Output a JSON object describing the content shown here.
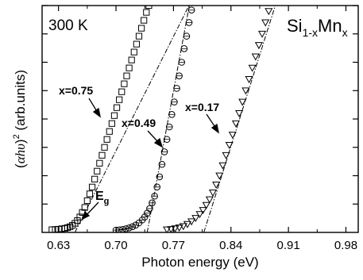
{
  "chart_data": {
    "type": "scatter",
    "title": "",
    "temperature_label": "300 K",
    "material": {
      "base": "Si",
      "sub1": "1-x",
      "mid": "Mn",
      "sub2": "x"
    },
    "xlabel": "Photon energy (eV)",
    "ylabel": {
      "prefix": "(",
      "symbol": "αhυ",
      "suffix": ")",
      "sup": "2",
      "unit": " (arb.units)"
    },
    "xlim": [
      0.61,
      0.995
    ],
    "ylim": [
      0,
      1
    ],
    "xticks": [
      "0.63",
      "0.70",
      "0.77",
      "0.84",
      "0.91",
      "0.98"
    ],
    "xtick_values": [
      0.63,
      0.7,
      0.77,
      0.84,
      0.91,
      0.98
    ],
    "y_tick_count": 8,
    "eg_label": {
      "main": "E",
      "sub": "g"
    },
    "series": [
      {
        "label": "x=0.75",
        "marker": "square",
        "eg": 0.65,
        "fit_slope": 7.2,
        "points": [
          [
            0.622,
            0.012
          ],
          [
            0.626,
            0.013
          ],
          [
            0.63,
            0.014
          ],
          [
            0.634,
            0.016
          ],
          [
            0.638,
            0.018
          ],
          [
            0.641,
            0.021
          ],
          [
            0.644,
            0.025
          ],
          [
            0.647,
            0.031
          ],
          [
            0.65,
            0.04
          ],
          [
            0.653,
            0.052
          ],
          [
            0.656,
            0.068
          ],
          [
            0.659,
            0.088
          ],
          [
            0.662,
            0.11
          ],
          [
            0.665,
            0.14
          ],
          [
            0.668,
            0.17
          ],
          [
            0.671,
            0.2
          ],
          [
            0.674,
            0.235
          ],
          [
            0.677,
            0.27
          ],
          [
            0.68,
            0.305
          ],
          [
            0.683,
            0.34
          ],
          [
            0.686,
            0.375
          ],
          [
            0.689,
            0.41
          ],
          [
            0.692,
            0.445
          ],
          [
            0.695,
            0.48
          ],
          [
            0.698,
            0.515
          ],
          [
            0.701,
            0.55
          ],
          [
            0.704,
            0.585
          ],
          [
            0.707,
            0.62
          ],
          [
            0.71,
            0.655
          ],
          [
            0.713,
            0.69
          ],
          [
            0.716,
            0.725
          ],
          [
            0.719,
            0.76
          ],
          [
            0.722,
            0.795
          ],
          [
            0.725,
            0.83
          ],
          [
            0.728,
            0.865
          ],
          [
            0.731,
            0.9
          ],
          [
            0.734,
            0.935
          ],
          [
            0.737,
            0.97
          ],
          [
            0.74,
            1.0
          ]
        ]
      },
      {
        "label": "x=0.49",
        "marker": "circle",
        "eg": 0.738,
        "fit_slope": 19.5,
        "points": [
          [
            0.7,
            0.01
          ],
          [
            0.704,
            0.011
          ],
          [
            0.708,
            0.013
          ],
          [
            0.712,
            0.016
          ],
          [
            0.716,
            0.02
          ],
          [
            0.72,
            0.025
          ],
          [
            0.724,
            0.032
          ],
          [
            0.728,
            0.042
          ],
          [
            0.732,
            0.055
          ],
          [
            0.735,
            0.068
          ],
          [
            0.738,
            0.085
          ],
          [
            0.741,
            0.105
          ],
          [
            0.744,
            0.13
          ],
          [
            0.747,
            0.16
          ],
          [
            0.75,
            0.2
          ],
          [
            0.753,
            0.245
          ],
          [
            0.756,
            0.3
          ],
          [
            0.759,
            0.355
          ],
          [
            0.762,
            0.41
          ],
          [
            0.765,
            0.465
          ],
          [
            0.768,
            0.52
          ],
          [
            0.771,
            0.575
          ],
          [
            0.774,
            0.635
          ],
          [
            0.777,
            0.69
          ],
          [
            0.78,
            0.75
          ],
          [
            0.783,
            0.81
          ],
          [
            0.786,
            0.865
          ],
          [
            0.789,
            0.925
          ],
          [
            0.792,
            0.98
          ]
        ]
      },
      {
        "label": "x=0.17",
        "marker": "triangle-down",
        "eg": 0.807,
        "fit_slope": 11.5,
        "points": [
          [
            0.762,
            0.012
          ],
          [
            0.767,
            0.014
          ],
          [
            0.772,
            0.017
          ],
          [
            0.777,
            0.021
          ],
          [
            0.782,
            0.027
          ],
          [
            0.787,
            0.036
          ],
          [
            0.792,
            0.048
          ],
          [
            0.797,
            0.063
          ],
          [
            0.802,
            0.08
          ],
          [
            0.806,
            0.098
          ],
          [
            0.81,
            0.12
          ],
          [
            0.814,
            0.145
          ],
          [
            0.818,
            0.175
          ],
          [
            0.822,
            0.21
          ],
          [
            0.826,
            0.25
          ],
          [
            0.83,
            0.295
          ],
          [
            0.834,
            0.34
          ],
          [
            0.838,
            0.385
          ],
          [
            0.842,
            0.43
          ],
          [
            0.846,
            0.48
          ],
          [
            0.85,
            0.525
          ],
          [
            0.854,
            0.575
          ],
          [
            0.858,
            0.625
          ],
          [
            0.862,
            0.675
          ],
          [
            0.866,
            0.725
          ],
          [
            0.87,
            0.775
          ],
          [
            0.874,
            0.825
          ],
          [
            0.878,
            0.875
          ],
          [
            0.882,
            0.925
          ],
          [
            0.886,
            0.975
          ]
        ]
      }
    ]
  }
}
